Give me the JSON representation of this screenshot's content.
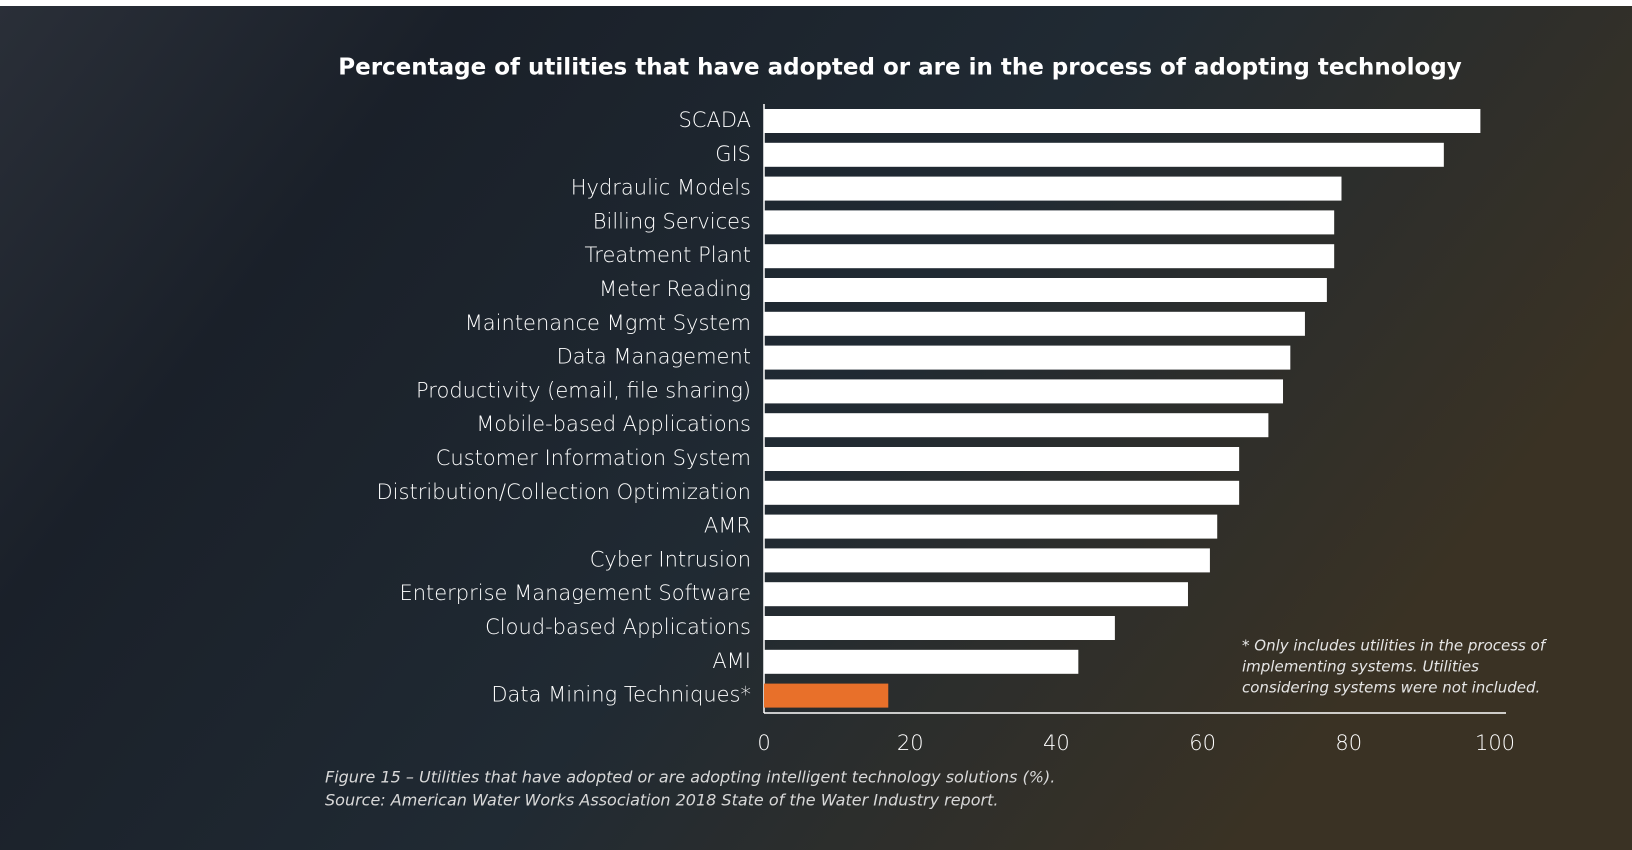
{
  "chart_data": {
    "type": "barh",
    "title": "Percentage of utilities that have adopted or are in the process of adopting technology",
    "categories": [
      "SCADA",
      "GIS",
      "Hydraulic Models",
      "Billing Services",
      "Treatment Plant",
      "Meter Reading",
      "Maintenance Mgmt System",
      "Data Management",
      "Productivity (email, file sharing)",
      "Mobile-based Applications",
      "Customer Information System",
      "Distribution/Collection Optimization",
      "AMR",
      "Cyber Intrusion",
      "Enterprise Management Software",
      "Cloud-based Applications",
      "AMI",
      "Data Mining Techniques*"
    ],
    "values": [
      98,
      93,
      79,
      78,
      78,
      77,
      74,
      72,
      71,
      69,
      65,
      65,
      62,
      61,
      58,
      48,
      43,
      17
    ],
    "colors": [
      "#ffffff",
      "#ffffff",
      "#ffffff",
      "#ffffff",
      "#ffffff",
      "#ffffff",
      "#ffffff",
      "#ffffff",
      "#ffffff",
      "#ffffff",
      "#ffffff",
      "#ffffff",
      "#ffffff",
      "#ffffff",
      "#ffffff",
      "#ffffff",
      "#ffffff",
      "#e8702a"
    ],
    "xlim": [
      0,
      100
    ],
    "xticks": [
      0,
      20,
      40,
      60,
      80,
      100
    ],
    "note": [
      "* Only includes utilities in the process of",
      "implementing systems. Utilities",
      "considering systems were not included."
    ],
    "caption": [
      "Figure 15 – Utilities that have adopted or are adopting intelligent technology solutions (%).",
      "Source: American Water Works Association 2018 State of the Water Industry report."
    ]
  }
}
